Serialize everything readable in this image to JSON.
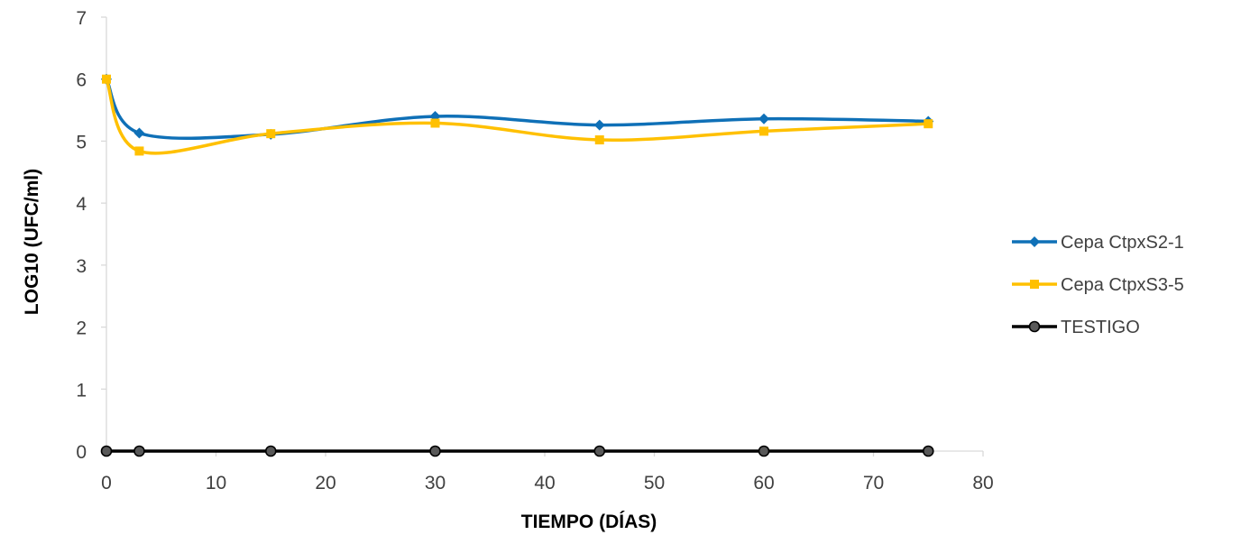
{
  "chart_data": {
    "type": "line",
    "title": "",
    "xlabel": "TIEMPO (DÍAS)",
    "ylabel": "LOG10 (UFC/ml)",
    "xlim": [
      0,
      80
    ],
    "ylim": [
      0,
      7
    ],
    "x_ticks": [
      "0",
      "10",
      "20",
      "30",
      "40",
      "50",
      "60",
      "70",
      "80"
    ],
    "y_ticks": [
      "0",
      "1",
      "2",
      "3",
      "4",
      "5",
      "6",
      "7"
    ],
    "grid": false,
    "smooth": true,
    "legend_position": "right",
    "series": [
      {
        "name": "Cepa CtpxS2-1",
        "color": "#0F70B7",
        "marker": "diamond",
        "x": [
          0,
          3,
          15,
          30,
          45,
          60,
          75
        ],
        "y": [
          6.0,
          5.13,
          5.11,
          5.4,
          5.26,
          5.36,
          5.32
        ]
      },
      {
        "name": "Cepa CtpxS3-5",
        "color": "#FFC000",
        "marker": "square",
        "x": [
          0,
          3,
          15,
          30,
          45,
          60,
          75
        ],
        "y": [
          6.0,
          4.84,
          5.12,
          5.29,
          5.02,
          5.16,
          5.28
        ]
      },
      {
        "name": "TESTIGO",
        "color": "#000000",
        "marker": "circle",
        "x": [
          0,
          3,
          15,
          30,
          45,
          60,
          75
        ],
        "y": [
          0,
          0,
          0,
          0,
          0,
          0,
          0
        ]
      }
    ]
  }
}
